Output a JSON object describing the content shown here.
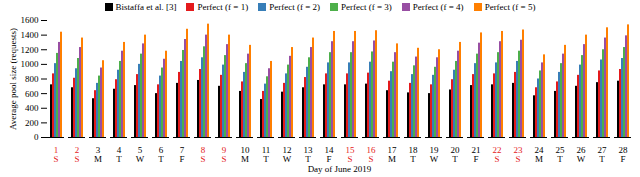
{
  "chart_data": {
    "type": "bar",
    "x_label": "Day of June 2019",
    "y_label": "Average pool size (requests)",
    "categories": [
      "1\nS",
      "2\nS",
      "3\nM",
      "4\nT",
      "5\nW",
      "6\nT",
      "7\nF",
      "8\nS",
      "9\nS",
      "10\nM",
      "11\nT",
      "12\nW",
      "13\nT",
      "14\nF",
      "15\nS",
      "16\nS",
      "17\nM",
      "18\nT",
      "19\nW",
      "20\nT",
      "21\nF",
      "22\nS",
      "23\nS",
      "24\nM",
      "25\nT",
      "26\nW",
      "27\nT",
      "28\nF"
    ],
    "series": [
      {
        "name": "Bistaffa et al. [3]",
        "color": "#000000",
        "values": [
          720,
          680,
          530,
          660,
          710,
          600,
          740,
          780,
          700,
          630,
          520,
          620,
          680,
          720,
          720,
          730,
          640,
          610,
          600,
          650,
          710,
          720,
          740,
          570,
          630,
          700,
          750,
          770
        ]
      },
      {
        "name": "Perfect (f = 1)",
        "color": "#e41a1c",
        "values": [
          870,
          810,
          640,
          790,
          860,
          720,
          890,
          930,
          850,
          760,
          630,
          740,
          820,
          870,
          870,
          880,
          770,
          740,
          720,
          790,
          860,
          870,
          890,
          680,
          760,
          850,
          910,
          930
        ]
      },
      {
        "name": "Perfect (f = 2)",
        "color": "#377eb8",
        "values": [
          1010,
          940,
          740,
          920,
          1000,
          840,
          1040,
          1090,
          990,
          890,
          730,
          870,
          960,
          1020,
          1020,
          1030,
          900,
          860,
          850,
          920,
          1010,
          1020,
          1040,
          800,
          890,
          990,
          1060,
          1080
        ]
      },
      {
        "name": "Perfect (f = 3)",
        "color": "#4daf4a",
        "values": [
          1150,
          1080,
          840,
          1040,
          1140,
          950,
          1190,
          1240,
          1120,
          1010,
          830,
          990,
          1090,
          1160,
          1160,
          1170,
          1030,
          980,
          960,
          1040,
          1140,
          1160,
          1180,
          910,
          1010,
          1120,
          1200,
          1230
        ]
      },
      {
        "name": "Perfect (f = 4)",
        "color": "#984ea3",
        "values": [
          1300,
          1230,
          950,
          1180,
          1280,
          1070,
          1340,
          1400,
          1270,
          1140,
          940,
          1110,
          1230,
          1310,
          1310,
          1320,
          1160,
          1100,
          1090,
          1180,
          1290,
          1310,
          1330,
          1020,
          1140,
          1270,
          1360,
          1390
        ]
      },
      {
        "name": "Perfect (f = 5)",
        "color": "#ff7f00",
        "values": [
          1440,
          1360,
          1050,
          1300,
          1400,
          1180,
          1480,
          1550,
          1400,
          1260,
          1040,
          1230,
          1360,
          1450,
          1450,
          1460,
          1280,
          1220,
          1200,
          1300,
          1430,
          1450,
          1470,
          1130,
          1260,
          1400,
          1500,
          1540
        ]
      }
    ],
    "ylim": [
      0,
      1600
    ],
    "yticks": [
      0,
      200,
      400,
      600,
      800,
      1000,
      1200,
      1400,
      1600
    ],
    "grid": false,
    "legend": "top"
  }
}
